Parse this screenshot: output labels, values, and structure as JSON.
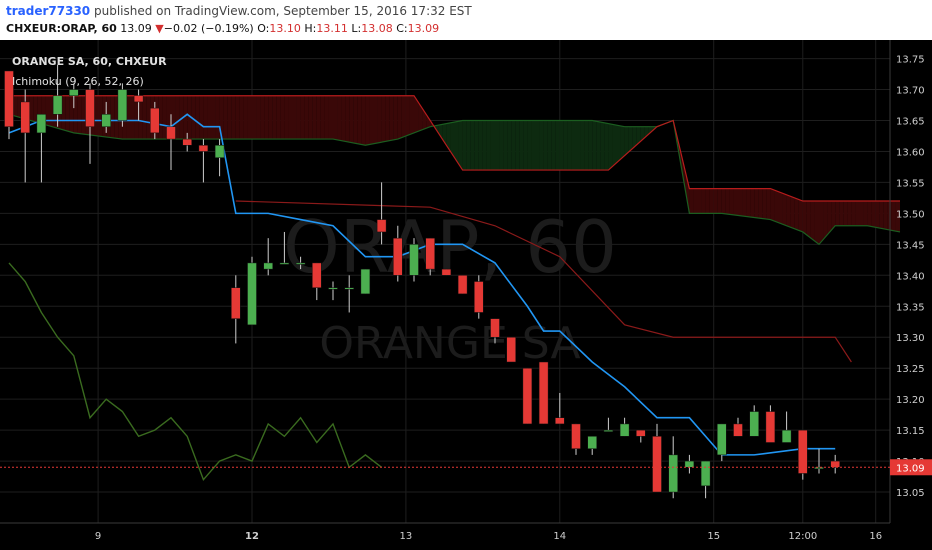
{
  "header": {
    "username": "trader77330",
    "published_text": "published on TradingView.com, September 15, 2016 17:32 EST",
    "symbol": "CHXEUR:ORAP, 60",
    "last": "13.09",
    "arrow": "▼",
    "change": "−0.02 (−0.19%)",
    "open_label": "O:",
    "open": "13.10",
    "high_label": "H:",
    "high": "13.11",
    "low_label": "L:",
    "low": "13.08",
    "close_label": "C:",
    "close": "13.09"
  },
  "legend": {
    "title": "ORANGE SA, 60, CHXEUR",
    "indicator": "Ichimoku (9, 26, 52, 26)"
  },
  "watermark": {
    "symbol": "ORAP, 60",
    "name": "ORANGE SA"
  },
  "colors": {
    "background": "#000000",
    "grid": "#1e1e1e",
    "up": "#4caf50",
    "down": "#e53935",
    "tenkan": "#2196f3",
    "kijun": "#8b1a1a",
    "chikou": "#3a6b1f",
    "span_a": "#1b5e20",
    "span_b": "#b71c1c",
    "cloud_green": "#0d2a10",
    "cloud_red": "#3a0808",
    "price_line": "#e53935",
    "price_label_bg": "#e53935"
  },
  "chart_data": {
    "type": "candlestick",
    "ylim": [
      13.0,
      13.78
    ],
    "y_ticks": [
      "13.75",
      "13.70",
      "13.65",
      "13.60",
      "13.55",
      "13.50",
      "13.45",
      "13.40",
      "13.35",
      "13.30",
      "13.25",
      "13.20",
      "13.15",
      "13.10",
      "13.05"
    ],
    "x_ticks": [
      {
        "label": "9",
        "i": 5.5,
        "bold": false
      },
      {
        "label": "12",
        "i": 15,
        "bold": true
      },
      {
        "label": "13",
        "i": 24.5,
        "bold": false
      },
      {
        "label": "14",
        "i": 34,
        "bold": false
      },
      {
        "label": "15",
        "i": 43.5,
        "bold": false
      },
      {
        "label": "12:00",
        "i": 49,
        "bold": false
      },
      {
        "label": "16",
        "i": 53.5,
        "bold": false
      }
    ],
    "last_price_label": "13.09",
    "last_price": 13.09,
    "candles": [
      {
        "o": 13.73,
        "h": 13.73,
        "l": 13.62,
        "c": 13.64
      },
      {
        "o": 13.68,
        "h": 13.7,
        "l": 13.55,
        "c": 13.63
      },
      {
        "o": 13.63,
        "h": 13.66,
        "l": 13.55,
        "c": 13.66
      },
      {
        "o": 13.66,
        "h": 13.74,
        "l": 13.64,
        "c": 13.69
      },
      {
        "o": 13.69,
        "h": 13.71,
        "l": 13.67,
        "c": 13.7
      },
      {
        "o": 13.7,
        "h": 13.71,
        "l": 13.58,
        "c": 13.64
      },
      {
        "o": 13.64,
        "h": 13.68,
        "l": 13.63,
        "c": 13.66
      },
      {
        "o": 13.65,
        "h": 13.71,
        "l": 13.64,
        "c": 13.7
      },
      {
        "o": 13.69,
        "h": 13.7,
        "l": 13.65,
        "c": 13.68
      },
      {
        "o": 13.67,
        "h": 13.68,
        "l": 13.62,
        "c": 13.63
      },
      {
        "o": 13.64,
        "h": 13.66,
        "l": 13.57,
        "c": 13.62
      },
      {
        "o": 13.62,
        "h": 13.63,
        "l": 13.6,
        "c": 13.61
      },
      {
        "o": 13.61,
        "h": 13.62,
        "l": 13.55,
        "c": 13.6
      },
      {
        "o": 13.59,
        "h": 13.62,
        "l": 13.56,
        "c": 13.61
      },
      {
        "o": 13.38,
        "h": 13.4,
        "l": 13.29,
        "c": 13.33
      },
      {
        "o": 13.32,
        "h": 13.43,
        "l": 13.32,
        "c": 13.42
      },
      {
        "o": 13.41,
        "h": 13.46,
        "l": 13.4,
        "c": 13.42
      },
      {
        "o": 13.42,
        "h": 13.47,
        "l": 13.42,
        "c": 13.42
      },
      {
        "o": 13.42,
        "h": 13.43,
        "l": 13.41,
        "c": 13.42
      },
      {
        "o": 13.42,
        "h": 13.42,
        "l": 13.36,
        "c": 13.38
      },
      {
        "o": 13.38,
        "h": 13.39,
        "l": 13.36,
        "c": 13.38
      },
      {
        "o": 13.38,
        "h": 13.4,
        "l": 13.34,
        "c": 13.38
      },
      {
        "o": 13.37,
        "h": 13.41,
        "l": 13.37,
        "c": 13.41
      },
      {
        "o": 13.49,
        "h": 13.55,
        "l": 13.45,
        "c": 13.47
      },
      {
        "o": 13.46,
        "h": 13.48,
        "l": 13.39,
        "c": 13.4
      },
      {
        "o": 13.4,
        "h": 13.46,
        "l": 13.39,
        "c": 13.45
      },
      {
        "o": 13.46,
        "h": 13.46,
        "l": 13.4,
        "c": 13.41
      },
      {
        "o": 13.41,
        "h": 13.41,
        "l": 13.4,
        "c": 13.4
      },
      {
        "o": 13.4,
        "h": 13.4,
        "l": 13.37,
        "c": 13.37
      },
      {
        "o": 13.39,
        "h": 13.4,
        "l": 13.33,
        "c": 13.34
      },
      {
        "o": 13.33,
        "h": 13.33,
        "l": 13.29,
        "c": 13.3
      },
      {
        "o": 13.3,
        "h": 13.3,
        "l": 13.26,
        "c": 13.26
      },
      {
        "o": 13.25,
        "h": 13.25,
        "l": 13.16,
        "c": 13.16
      },
      {
        "o": 13.26,
        "h": 13.26,
        "l": 13.16,
        "c": 13.16
      },
      {
        "o": 13.17,
        "h": 13.21,
        "l": 13.16,
        "c": 13.16
      },
      {
        "o": 13.16,
        "h": 13.16,
        "l": 13.11,
        "c": 13.12
      },
      {
        "o": 13.12,
        "h": 13.14,
        "l": 13.11,
        "c": 13.14
      },
      {
        "o": 13.15,
        "h": 13.17,
        "l": 13.15,
        "c": 13.15
      },
      {
        "o": 13.14,
        "h": 13.17,
        "l": 13.14,
        "c": 13.16
      },
      {
        "o": 13.15,
        "h": 13.15,
        "l": 13.13,
        "c": 13.14
      },
      {
        "o": 13.14,
        "h": 13.16,
        "l": 13.05,
        "c": 13.05
      },
      {
        "o": 13.05,
        "h": 13.14,
        "l": 13.04,
        "c": 13.11
      },
      {
        "o": 13.09,
        "h": 13.11,
        "l": 13.08,
        "c": 13.1
      },
      {
        "o": 13.06,
        "h": 13.1,
        "l": 13.04,
        "c": 13.1
      },
      {
        "o": 13.11,
        "h": 13.16,
        "l": 13.1,
        "c": 13.16
      },
      {
        "o": 13.16,
        "h": 13.17,
        "l": 13.14,
        "c": 13.14
      },
      {
        "o": 13.14,
        "h": 13.19,
        "l": 13.14,
        "c": 13.18
      },
      {
        "o": 13.18,
        "h": 13.19,
        "l": 13.13,
        "c": 13.13
      },
      {
        "o": 13.13,
        "h": 13.18,
        "l": 13.13,
        "c": 13.15
      },
      {
        "o": 13.15,
        "h": 13.15,
        "l": 13.07,
        "c": 13.08
      },
      {
        "o": 13.09,
        "h": 13.12,
        "l": 13.08,
        "c": 13.09
      },
      {
        "o": 13.1,
        "h": 13.11,
        "l": 13.08,
        "c": 13.09
      }
    ],
    "tenkan": [
      [
        0,
        13.63
      ],
      [
        2,
        13.65
      ],
      [
        5,
        13.65
      ],
      [
        8,
        13.65
      ],
      [
        10,
        13.64
      ],
      [
        11,
        13.66
      ],
      [
        12,
        13.64
      ],
      [
        13,
        13.64
      ],
      [
        14,
        13.5
      ],
      [
        16,
        13.5
      ],
      [
        18,
        13.49
      ],
      [
        20,
        13.48
      ],
      [
        22,
        13.43
      ],
      [
        24,
        13.43
      ],
      [
        26,
        13.45
      ],
      [
        28,
        13.45
      ],
      [
        30,
        13.42
      ],
      [
        32,
        13.35
      ],
      [
        33,
        13.31
      ],
      [
        34,
        13.31
      ],
      [
        36,
        13.26
      ],
      [
        38,
        13.22
      ],
      [
        40,
        13.17
      ],
      [
        42,
        13.17
      ],
      [
        44,
        13.11
      ],
      [
        46,
        13.11
      ],
      [
        49,
        13.12
      ],
      [
        51,
        13.12
      ]
    ],
    "kijun": [
      [
        0,
        13.67
      ],
      [
        25,
        13.67
      ],
      [
        27,
        13.61
      ],
      [
        28,
        13.57
      ],
      [
        37,
        13.57
      ],
      [
        40,
        13.64
      ],
      [
        41,
        13.65
      ],
      [
        42,
        13.52
      ],
      [
        55,
        13.52
      ]
    ],
    "kijun_lower": [
      [
        14,
        13.52
      ],
      [
        26,
        13.51
      ],
      [
        30,
        13.48
      ],
      [
        34,
        13.43
      ],
      [
        38,
        13.32
      ],
      [
        41,
        13.3
      ],
      [
        51,
        13.3
      ],
      [
        52,
        13.26
      ]
    ],
    "chikou": [
      [
        0,
        13.42
      ],
      [
        1,
        13.39
      ],
      [
        2,
        13.34
      ],
      [
        3,
        13.3
      ],
      [
        4,
        13.27
      ],
      [
        5,
        13.17
      ],
      [
        6,
        13.2
      ],
      [
        7,
        13.18
      ],
      [
        8,
        13.14
      ],
      [
        9,
        13.15
      ],
      [
        10,
        13.17
      ],
      [
        11,
        13.14
      ],
      [
        12,
        13.07
      ],
      [
        13,
        13.1
      ],
      [
        14,
        13.11
      ],
      [
        15,
        13.1
      ],
      [
        16,
        13.16
      ],
      [
        17,
        13.14
      ],
      [
        18,
        13.17
      ],
      [
        19,
        13.13
      ],
      [
        20,
        13.16
      ],
      [
        21,
        13.09
      ],
      [
        22,
        13.11
      ],
      [
        23,
        13.09
      ]
    ],
    "span_a": [
      [
        0,
        13.66
      ],
      [
        4,
        13.63
      ],
      [
        7,
        13.62
      ],
      [
        10,
        13.62
      ],
      [
        14,
        13.62
      ],
      [
        20,
        13.62
      ],
      [
        22,
        13.61
      ],
      [
        24,
        13.62
      ],
      [
        26,
        13.64
      ],
      [
        28,
        13.65
      ],
      [
        34,
        13.65
      ],
      [
        36,
        13.65
      ],
      [
        38,
        13.64
      ],
      [
        40,
        13.64
      ],
      [
        41,
        13.65
      ],
      [
        42,
        13.5
      ],
      [
        44,
        13.5
      ],
      [
        47,
        13.49
      ],
      [
        49,
        13.47
      ],
      [
        50,
        13.45
      ],
      [
        51,
        13.48
      ],
      [
        53,
        13.48
      ],
      [
        55,
        13.47
      ]
    ],
    "span_b": [
      [
        0,
        13.69
      ],
      [
        25,
        13.69
      ],
      [
        27,
        13.61
      ],
      [
        28,
        13.57
      ],
      [
        37,
        13.57
      ],
      [
        40,
        13.64
      ],
      [
        41,
        13.65
      ],
      [
        42,
        13.54
      ],
      [
        47,
        13.54
      ],
      [
        49,
        13.52
      ],
      [
        55,
        13.52
      ]
    ]
  }
}
